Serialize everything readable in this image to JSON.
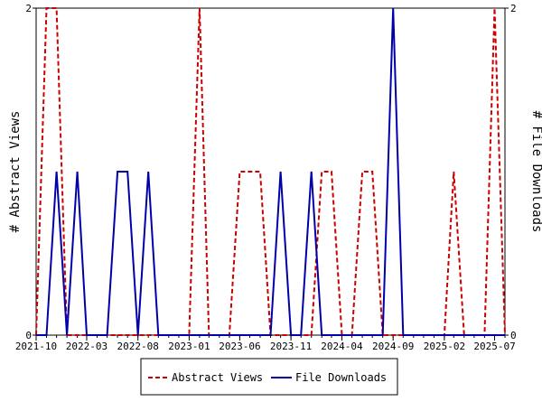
{
  "chart_data": {
    "type": "line",
    "title": "",
    "x_tick_labels": [
      "2021-10",
      "2022-03",
      "2022-08",
      "2023-01",
      "2023-06",
      "2023-11",
      "2024-04",
      "2024-09",
      "2025-02",
      "2025-07"
    ],
    "y_left": {
      "label": "# Abstract Views",
      "ticks": [
        "0",
        "2"
      ],
      "ylim": [
        0,
        2
      ]
    },
    "y_right": {
      "label": "# File Downloads",
      "ticks": [
        "0",
        "2"
      ],
      "ylim": [
        0,
        2
      ]
    },
    "legend_position": "bottom",
    "grid": false,
    "series": [
      {
        "name": "Abstract Views",
        "color": "#cc0000",
        "axis": "left",
        "style": "dashed",
        "points": [
          [
            "2021-10-01",
            0
          ],
          [
            "2021-11-01",
            2
          ],
          [
            "2021-12-01",
            2
          ],
          [
            "2022-01-01",
            0
          ],
          [
            "2023-01-01",
            0
          ],
          [
            "2023-02-01",
            2
          ],
          [
            "2023-03-01",
            0
          ],
          [
            "2023-05-01",
            0
          ],
          [
            "2023-06-01",
            1
          ],
          [
            "2023-07-01",
            1
          ],
          [
            "2023-08-01",
            1
          ],
          [
            "2023-09-01",
            0
          ],
          [
            "2024-01-01",
            0
          ],
          [
            "2024-02-01",
            1
          ],
          [
            "2024-03-01",
            1
          ],
          [
            "2024-04-01",
            0
          ],
          [
            "2024-05-01",
            0
          ],
          [
            "2024-06-01",
            1
          ],
          [
            "2024-07-01",
            1
          ],
          [
            "2024-08-01",
            0
          ],
          [
            "2025-02-01",
            0
          ],
          [
            "2025-03-01",
            1
          ],
          [
            "2025-04-01",
            0
          ],
          [
            "2025-06-01",
            0
          ],
          [
            "2025-07-01",
            2
          ],
          [
            "2025-08-01",
            0
          ]
        ]
      },
      {
        "name": "File Downloads",
        "color": "#0000aa",
        "axis": "right",
        "style": "solid",
        "points": [
          [
            "2021-10-01",
            0
          ],
          [
            "2021-11-01",
            0
          ],
          [
            "2021-12-01",
            1
          ],
          [
            "2022-01-01",
            0
          ],
          [
            "2022-02-01",
            1
          ],
          [
            "2022-03-01",
            0
          ],
          [
            "2022-05-01",
            0
          ],
          [
            "2022-06-01",
            1
          ],
          [
            "2022-07-01",
            1
          ],
          [
            "2022-08-01",
            0
          ],
          [
            "2022-09-01",
            1
          ],
          [
            "2022-10-01",
            0
          ],
          [
            "2023-09-01",
            0
          ],
          [
            "2023-10-01",
            1
          ],
          [
            "2023-11-01",
            0
          ],
          [
            "2023-12-01",
            0
          ],
          [
            "2024-01-01",
            1
          ],
          [
            "2024-02-01",
            0
          ],
          [
            "2024-08-01",
            0
          ],
          [
            "2024-09-01",
            2
          ],
          [
            "2024-10-01",
            0
          ],
          [
            "2025-08-01",
            0
          ]
        ]
      }
    ]
  }
}
